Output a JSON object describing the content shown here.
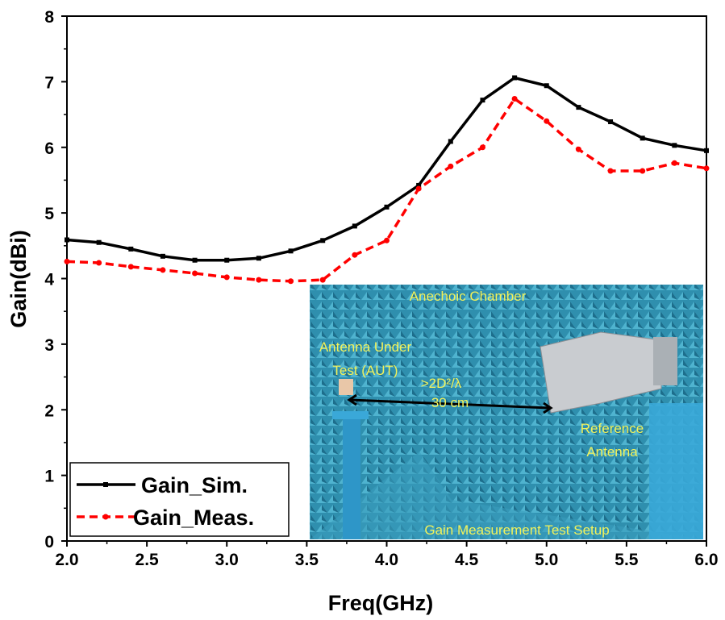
{
  "chart_data": {
    "type": "line",
    "xlabel": "Freq(GHz)",
    "ylabel": "Gain(dBi)",
    "xlim": [
      2.0,
      6.0
    ],
    "ylim": [
      0,
      8
    ],
    "xticks": [
      "2.0",
      "2.5",
      "3.0",
      "3.5",
      "4.0",
      "4.5",
      "5.0",
      "5.5",
      "6.0"
    ],
    "yticks": [
      "0",
      "1",
      "2",
      "3",
      "4",
      "5",
      "6",
      "7",
      "8"
    ],
    "grid": false,
    "legend": "bottom-left",
    "x": [
      2.0,
      2.2,
      2.4,
      2.6,
      2.8,
      3.0,
      3.2,
      3.4,
      3.6,
      3.8,
      4.0,
      4.2,
      4.4,
      4.6,
      4.8,
      5.0,
      5.2,
      5.4,
      5.6,
      5.8,
      6.0
    ],
    "series": [
      {
        "name": "Gain_Sim.",
        "color": "#000000",
        "style": "solid",
        "marker": "square",
        "values": [
          4.59,
          4.55,
          4.45,
          4.34,
          4.28,
          4.28,
          4.31,
          4.42,
          4.58,
          4.8,
          5.09,
          5.42,
          6.09,
          6.72,
          7.06,
          6.94,
          6.61,
          6.39,
          6.14,
          6.03,
          5.95
        ]
      },
      {
        "name": "Gain_Meas.",
        "color": "#ff0000",
        "style": "dashed",
        "marker": "circle",
        "values": [
          4.26,
          4.24,
          4.18,
          4.13,
          4.08,
          4.02,
          3.98,
          3.96,
          3.98,
          4.36,
          4.58,
          5.37,
          5.71,
          6.0,
          6.74,
          6.4,
          5.97,
          5.64,
          5.64,
          5.76,
          5.68
        ]
      }
    ],
    "inset": {
      "title": "Anechoic Chamber",
      "aut_label_1": "Antenna Under",
      "aut_label_2": "Test (AUT)",
      "distance_label_1": ">2D²/λ",
      "distance_label_2": "30 cm",
      "ref_label_1": "Reference",
      "ref_label_2": "Antenna",
      "caption": "Gain Measurement Test Setup"
    }
  }
}
